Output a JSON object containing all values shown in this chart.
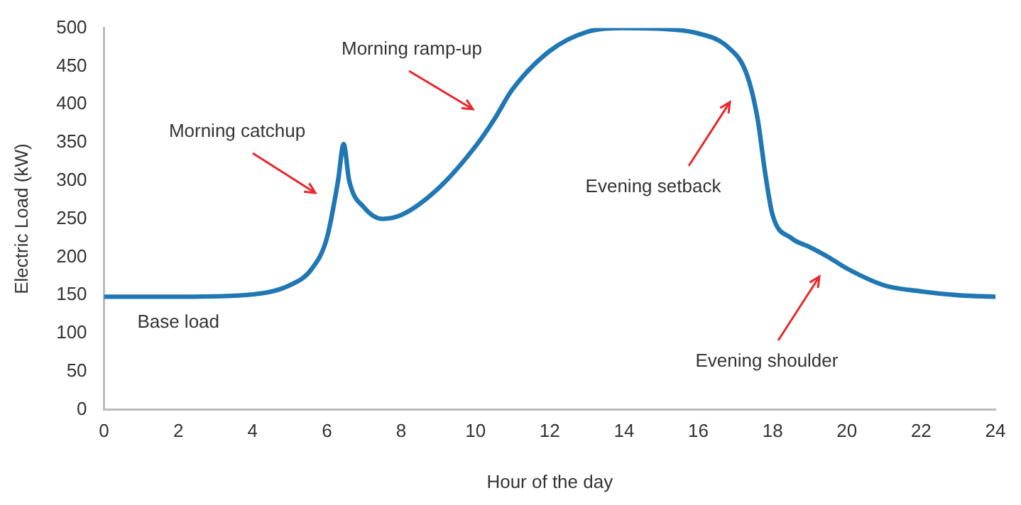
{
  "chart_data": {
    "type": "line",
    "xlabel": "Hour of the day",
    "ylabel": "Electric Load (kW)",
    "x": [
      0,
      2,
      4,
      5,
      5.6,
      6,
      6.3,
      6.45,
      6.6,
      7,
      7.5,
      8,
      9,
      10,
      10.5,
      11,
      12,
      13,
      14,
      15,
      16,
      16.8,
      17.3,
      17.6,
      17.8,
      18,
      18.5,
      19,
      19.5,
      20,
      21,
      22,
      23,
      24
    ],
    "series": [
      {
        "color": "#1f77b4",
        "values": [
          148,
          148,
          151,
          163,
          185,
          225,
          300,
          348,
          300,
          265,
          250,
          255,
          290,
          345,
          380,
          420,
          470,
          495,
          500,
          499,
          493,
          475,
          440,
          380,
          310,
          255,
          225,
          213,
          200,
          185,
          163,
          155,
          150,
          148
        ]
      }
    ],
    "xlim": [
      0,
      24
    ],
    "xticks": [
      0,
      2,
      4,
      6,
      8,
      10,
      12,
      14,
      16,
      18,
      20,
      22,
      24
    ],
    "ylim": [
      0,
      500
    ],
    "yticks": [
      0,
      50,
      100,
      150,
      200,
      250,
      300,
      350,
      400,
      450,
      500
    ],
    "grid": false,
    "legend": false,
    "marker": "none",
    "line_style": "solid",
    "annotations": [
      {
        "text": "Base load",
        "x": 2,
        "y": 148
      },
      "Morning catchup",
      "Morning ramp-up",
      "Evening setback",
      "Evening shoulder"
    ]
  }
}
